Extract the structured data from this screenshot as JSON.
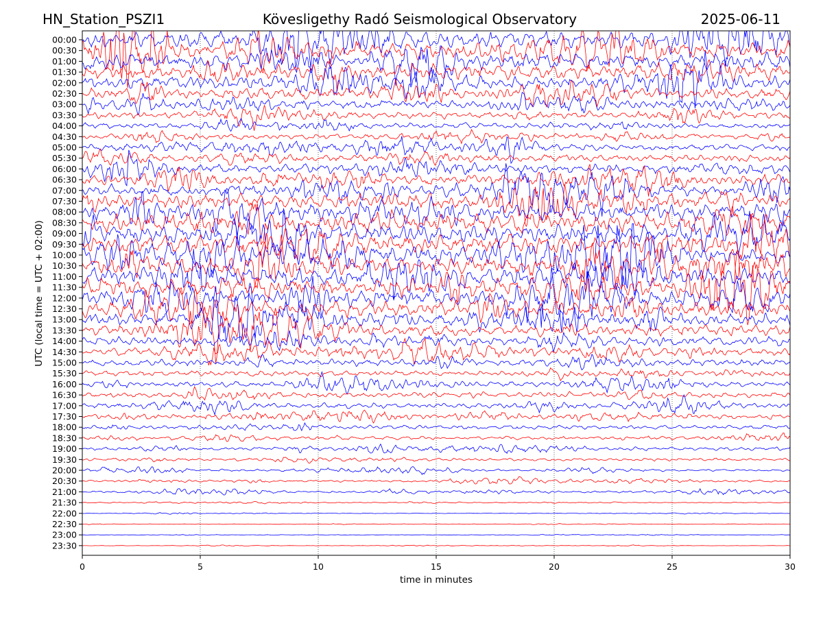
{
  "chart_data": {
    "type": "line",
    "title_left": "HN_Station_PSZI1",
    "title_center": "Kövesligethy Radó Seismological Observatory",
    "title_right": "2025-06-11",
    "xlabel": "time in minutes",
    "ylabel": "UTC (local time = UTC + 02:00)",
    "xlim": [
      0,
      30
    ],
    "x_ticks": [
      "0",
      "5",
      "10",
      "15",
      "20",
      "25",
      "30"
    ],
    "row_labels": [
      "00:00",
      "00:30",
      "01:00",
      "01:30",
      "02:00",
      "02:30",
      "03:00",
      "03:30",
      "04:00",
      "04:30",
      "05:00",
      "05:30",
      "06:00",
      "06:30",
      "07:00",
      "07:30",
      "08:00",
      "08:30",
      "09:00",
      "09:30",
      "10:00",
      "10:30",
      "11:00",
      "11:30",
      "12:00",
      "12:30",
      "13:00",
      "13:30",
      "14:00",
      "14:30",
      "15:00",
      "15:30",
      "16:00",
      "16:30",
      "17:00",
      "17:30",
      "18:00",
      "18:30",
      "19:00",
      "19:30",
      "20:00",
      "20:30",
      "21:00",
      "21:30",
      "22:00",
      "22:30",
      "23:00",
      "23:30"
    ],
    "grid_vertical": "dotted at x ticks",
    "colors": {
      "trace_a": "#0000ff",
      "trace_b": "#ff0000"
    },
    "amplitude_level": [
      0.9,
      0.9,
      0.85,
      0.8,
      0.7,
      0.6,
      0.45,
      0.35,
      0.3,
      0.3,
      0.35,
      0.4,
      0.5,
      0.55,
      0.65,
      0.8,
      0.95,
      1.0,
      1.0,
      1.0,
      1.0,
      1.0,
      1.0,
      0.95,
      0.9,
      0.85,
      0.7,
      0.6,
      0.5,
      0.45,
      0.35,
      0.3,
      0.3,
      0.3,
      0.28,
      0.25,
      0.22,
      0.2,
      0.18,
      0.16,
      0.12,
      0.12,
      0.12,
      0.05,
      0.03,
      0.03,
      0.02,
      0.02
    ]
  }
}
